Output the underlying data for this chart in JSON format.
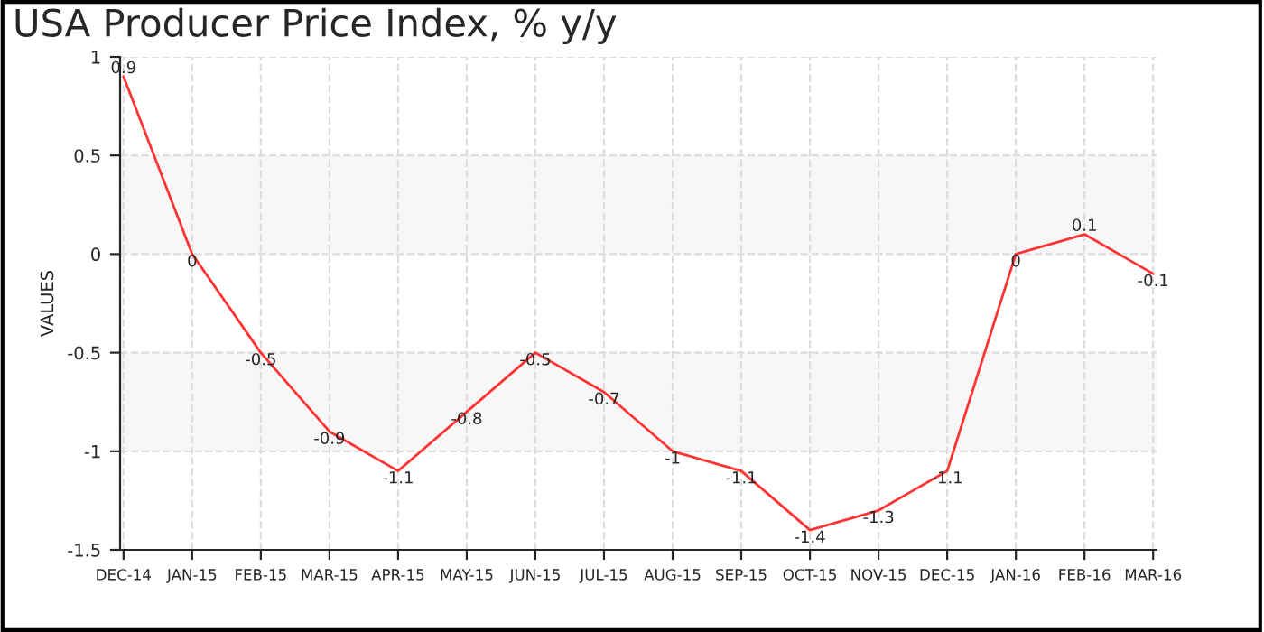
{
  "chart_data": {
    "type": "line",
    "title": "USA Producer Price Index, % y/y",
    "ylabel": "VALUES",
    "categories": [
      "DEC-14",
      "JAN-15",
      "FEB-15",
      "MAR-15",
      "APR-15",
      "MAY-15",
      "JUN-15",
      "JUL-15",
      "AUG-15",
      "SEP-15",
      "OCT-15",
      "NOV-15",
      "DEC-15",
      "JAN-16",
      "FEB-16",
      "MAR-16"
    ],
    "series": [
      {
        "color": "#ff3333",
        "values": [
          0.9,
          0,
          -0.5,
          -0.9,
          -1.1,
          -0.8,
          -0.5,
          -0.7,
          -1,
          -1.1,
          -1.4,
          -1.3,
          -1.1,
          0,
          0.1,
          -0.1
        ]
      }
    ],
    "ylim": [
      -1.5,
      1
    ],
    "yticks": [
      -1.5,
      -1,
      -0.5,
      0,
      0.5,
      1
    ],
    "bands": [
      {
        "axis": "y",
        "from": 0,
        "to": 0.5,
        "color": "#f7f7f7"
      },
      {
        "axis": "y",
        "from": -1,
        "to": -0.5,
        "color": "#f7f7f7"
      }
    ],
    "grid": true,
    "data_labels": true,
    "line_style": "solid"
  }
}
